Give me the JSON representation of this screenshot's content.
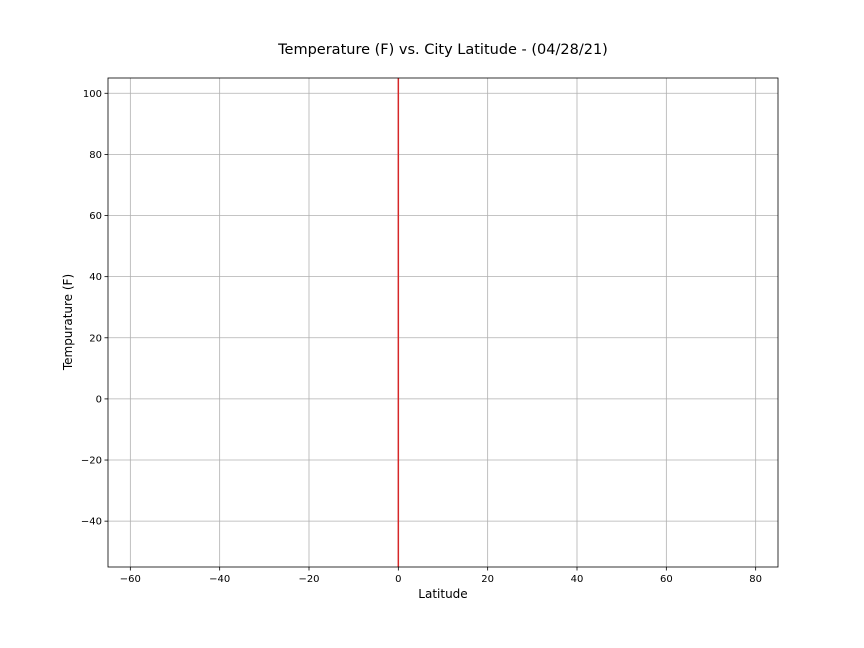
{
  "chart_data": {
    "type": "line",
    "title": "Temperature (F) vs. City Latitude - (04/28/21)",
    "xlabel": "Latitude",
    "ylabel": "Tempurature (F)",
    "xlim": [
      -65,
      85
    ],
    "ylim": [
      -55,
      105
    ],
    "xticks": [
      -60,
      -40,
      -20,
      0,
      20,
      40,
      60,
      80
    ],
    "yticks": [
      -40,
      -20,
      0,
      20,
      40,
      60,
      80,
      100
    ],
    "xtick_labels": [
      "−60",
      "−40",
      "−20",
      "0",
      "20",
      "40",
      "60",
      "80"
    ],
    "ytick_labels": [
      "−40",
      "−20",
      "0",
      "20",
      "40",
      "60",
      "80",
      "100"
    ],
    "grid": true,
    "series": [
      {
        "x": [
          0,
          0
        ],
        "y": [
          -55,
          105
        ],
        "color": "#d62728"
      }
    ]
  }
}
